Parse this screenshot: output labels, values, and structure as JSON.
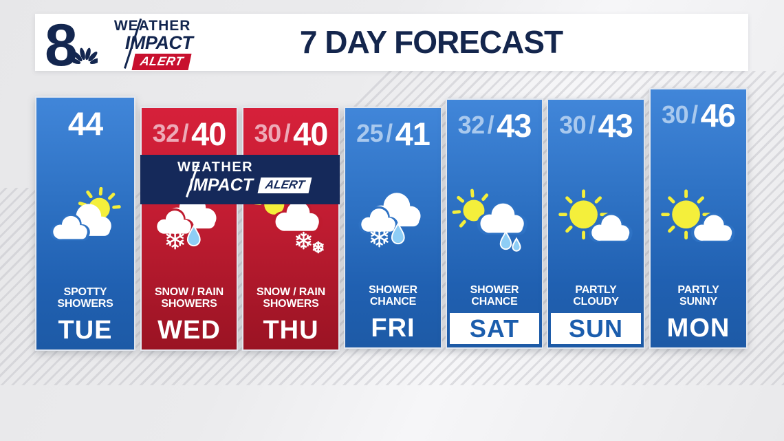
{
  "header": {
    "station_number": "8",
    "logo": {
      "weather": "WEATHER",
      "impact": "IMPACT",
      "alert": "ALERT"
    },
    "title": "7 DAY FORECAST"
  },
  "banner": {
    "weather": "WEATHER",
    "impact": "IMPACT",
    "alert": "ALERT"
  },
  "forecast": {
    "slash": "/",
    "days": [
      {
        "day": "TUE",
        "high": "44",
        "low": "",
        "condition": [
          "SPOTTY",
          "SHOWERS"
        ],
        "icon": "cloud-sun",
        "theme": "blue",
        "label_style": "plain"
      },
      {
        "day": "WED",
        "high": "40",
        "low": "32",
        "condition": [
          "SNOW / RAIN",
          "SHOWERS"
        ],
        "icon": "cloud-snow-rain",
        "theme": "red",
        "label_style": "plain"
      },
      {
        "day": "THU",
        "high": "40",
        "low": "30",
        "condition": [
          "SNOW / RAIN",
          "SHOWERS"
        ],
        "icon": "sun-cloud-snow",
        "theme": "red",
        "label_style": "plain"
      },
      {
        "day": "FRI",
        "high": "41",
        "low": "25",
        "condition": [
          "SHOWER",
          "CHANCE"
        ],
        "icon": "cloud-snow-rain",
        "theme": "blue",
        "label_style": "plain"
      },
      {
        "day": "SAT",
        "high": "43",
        "low": "32",
        "condition": [
          "SHOWER",
          "CHANCE"
        ],
        "icon": "sun-cloud-rain",
        "theme": "blue",
        "label_style": "boxed"
      },
      {
        "day": "SUN",
        "high": "43",
        "low": "30",
        "condition": [
          "PARTLY",
          "CLOUDY"
        ],
        "icon": "sun-cloud",
        "theme": "blue",
        "label_style": "boxed"
      },
      {
        "day": "MON",
        "high": "46",
        "low": "30",
        "condition": [
          "PARTLY",
          "SUNNY"
        ],
        "icon": "sun-cloud",
        "theme": "blue",
        "label_style": "plain"
      }
    ]
  },
  "colors": {
    "blue_top": "#4186d9",
    "blue_bottom": "#1d5aa6",
    "red_top": "#d6203a",
    "red_bottom": "#9a1323",
    "banner_navy": "#15295a",
    "title_navy": "#14264d",
    "alert_red": "#c8102e",
    "low_on_blue": "#a9c9ee",
    "low_on_red": "#edaab7",
    "boxed_day_text": "#1b5dad",
    "sun_yellow": "#f4ef3b",
    "rain_drop": "#8ecdf5"
  }
}
